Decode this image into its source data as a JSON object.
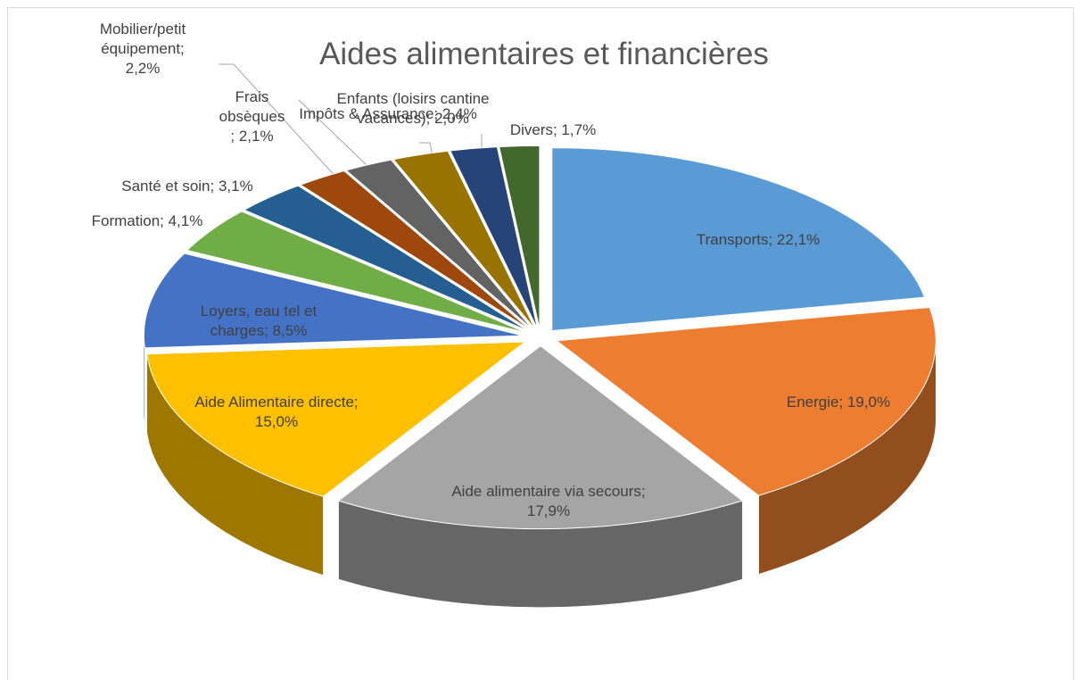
{
  "chart_data": {
    "type": "pie",
    "title": "Aides alimentaires et financières",
    "categories": [
      "Transports",
      "Energie",
      "Aide alimentaire via secours",
      "Aide Alimentaire directe",
      "Loyers, eau tel  et charges",
      "Formation",
      "Santé et soin",
      "Mobilier/petit équipement",
      "Frais obsèques",
      "Impôts & Assurance",
      "Enfants (loisirs cantine vacances)",
      "Divers"
    ],
    "values": [
      22.1,
      19.0,
      17.9,
      15.0,
      8.5,
      4.1,
      3.1,
      2.2,
      2.1,
      2.4,
      2.0,
      1.7
    ],
    "value_labels": [
      "; 22,1%",
      "; 19,0%",
      "; 17,9%",
      "; 15,0%",
      "; 8,5%",
      "; 4,1%",
      "; 3,1%",
      "; 2,2%",
      "; 2,1%",
      "; 2,4%",
      "; 2,0%",
      "; 1,7%"
    ],
    "colors": [
      "#5b9bd5",
      "#ed7d31",
      "#a5a5a5",
      "#ffc000",
      "#4472c4",
      "#70ad47",
      "#255e91",
      "#9e480e",
      "#636363",
      "#997300",
      "#264478",
      "#43682b"
    ],
    "three_d": true,
    "exploded": true
  }
}
